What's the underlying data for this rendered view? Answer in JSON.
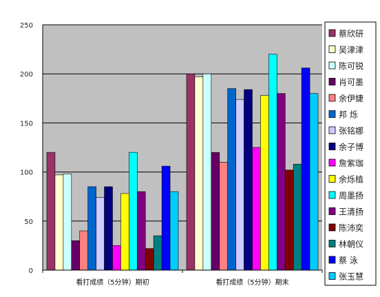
{
  "chart_data": {
    "type": "bar",
    "categories": [
      "看打成绩（5分钟）期初",
      "看打成绩（5分钟）期末"
    ],
    "ylim": [
      0,
      250
    ],
    "yticks": [
      0,
      50,
      100,
      150,
      200,
      250
    ],
    "grid": true,
    "legend_position": "right",
    "plot_background": "#c0c0c0",
    "series": [
      {
        "name": "蔡欣研",
        "color": "#993366",
        "values": [
          120,
          200
        ]
      },
      {
        "name": "吴津津",
        "color": "#ffffcc",
        "values": [
          97,
          197
        ]
      },
      {
        "name": "陈可锐",
        "color": "#ccffff",
        "values": [
          98,
          200
        ]
      },
      {
        "name": "肖可墨",
        "color": "#660066",
        "values": [
          30,
          120
        ]
      },
      {
        "name": "余伊婕",
        "color": "#ff8080",
        "values": [
          40,
          110
        ]
      },
      {
        "name": "邦 烁",
        "color": "#0066cc",
        "values": [
          85,
          185
        ]
      },
      {
        "name": "张铭娜",
        "color": "#ccccff",
        "values": [
          74,
          174
        ]
      },
      {
        "name": "余子博",
        "color": "#000080",
        "values": [
          85,
          184
        ]
      },
      {
        "name": "詹紫珈",
        "color": "#ff00ff",
        "values": [
          25,
          125
        ]
      },
      {
        "name": "余烁植",
        "color": "#ffff00",
        "values": [
          78,
          178
        ]
      },
      {
        "name": "周墨扬",
        "color": "#00ffff",
        "values": [
          120,
          220
        ]
      },
      {
        "name": "王清扬",
        "color": "#800080",
        "values": [
          80,
          180
        ]
      },
      {
        "name": "陈沛奕",
        "color": "#800000",
        "values": [
          22,
          102
        ]
      },
      {
        "name": "林朝仪",
        "color": "#008080",
        "values": [
          35,
          108
        ]
      },
      {
        "name": "蔡 泳",
        "color": "#0000ff",
        "values": [
          106,
          206
        ]
      },
      {
        "name": "张玉慧",
        "color": "#00ccff",
        "values": [
          80,
          180
        ]
      }
    ]
  }
}
